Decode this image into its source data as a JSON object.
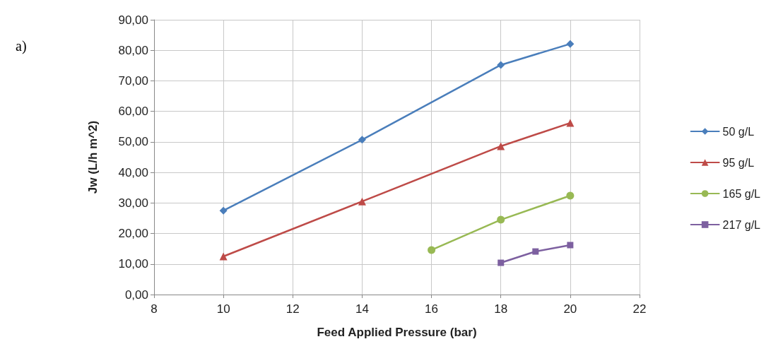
{
  "chart_data": {
    "type": "line",
    "xlabel": "Feed Applied Pressure (bar)",
    "ylabel": "Jw (L/h m^2)",
    "annotations": [
      "a)"
    ],
    "xlim": [
      8,
      22
    ],
    "xticks": [
      8,
      10,
      12,
      14,
      16,
      18,
      20,
      22
    ],
    "ylim": [
      0,
      90
    ],
    "yticks": [
      {
        "value": 0,
        "label": "0,00"
      },
      {
        "value": 10,
        "label": "10,00"
      },
      {
        "value": 20,
        "label": "20,00"
      },
      {
        "value": 30,
        "label": "30,00"
      },
      {
        "value": 40,
        "label": "40,00"
      },
      {
        "value": 50,
        "label": "50,00"
      },
      {
        "value": 60,
        "label": "60,00"
      },
      {
        "value": 70,
        "label": "70,00"
      },
      {
        "value": 80,
        "label": "80,00"
      },
      {
        "value": 90,
        "label": "90,00"
      }
    ],
    "grid": true,
    "legend": "right",
    "line_style": "solid",
    "series": [
      {
        "name": "50 g/L",
        "color": "#4a7ebb",
        "marker": "diamond",
        "x": [
          10,
          14,
          18,
          20
        ],
        "values": [
          27.5,
          50.7,
          75.2,
          82.1
        ]
      },
      {
        "name": "95 g/L",
        "color": "#be4b48",
        "marker": "triangle",
        "x": [
          10,
          14,
          18,
          20
        ],
        "values": [
          12.5,
          30.5,
          48.6,
          56.2
        ]
      },
      {
        "name": "165 g/L",
        "color": "#98b954",
        "marker": "circle",
        "x": [
          16,
          18,
          20
        ],
        "values": [
          14.6,
          24.5,
          32.4
        ]
      },
      {
        "name": "217 g/L",
        "color": "#7d60a0",
        "marker": "square",
        "x": [
          18,
          19,
          20
        ],
        "values": [
          10.4,
          14.1,
          16.2
        ]
      }
    ]
  }
}
